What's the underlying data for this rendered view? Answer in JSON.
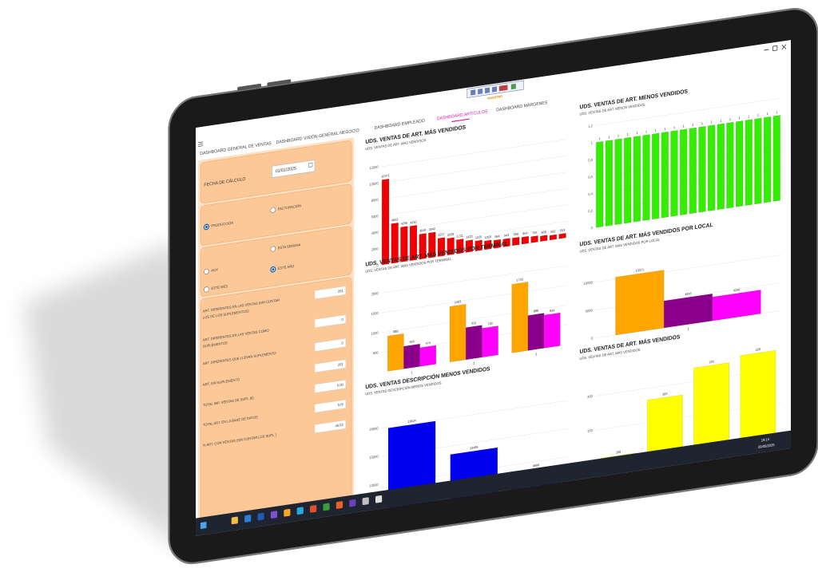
{
  "toolbar_label": "MAESTRO",
  "tabs": [
    "DASHBOARD GENERAL DE VENTAS",
    "DASHBOARD VISIÓN GENERAL NEGOCIO",
    "DASHBOARD EMPLEADO",
    "DASHBOARD ARTÍCULOS",
    "DASHBOARD MÁRGENES"
  ],
  "active_tab": 3,
  "filters": {
    "date_label": "FECHA DE CÁLCULO",
    "date_value": "01/01/2025",
    "mode": [
      "PRODUCCIÓN",
      "FACTURACIÓN"
    ],
    "mode_selected": 0,
    "period": [
      "HOY",
      "ESTA SEMANA",
      "ESTE AÑO",
      "ESTE MES"
    ],
    "period_selected": 2
  },
  "stats": [
    {
      "label": "ART. DIFERENTES EN LAS VENTAS (SIN CONTAR LOS DE LOS SUPLEMENTOS)",
      "value": "281"
    },
    {
      "label": "ART. DIFERENTES EN LAS VENTAS COMO SUPLEMENTOS",
      "value": "0"
    },
    {
      "label": "ART. DIFERENTES QUE LLEVAN SUPLEMENTO",
      "value": "0"
    },
    {
      "label": "ART. SIN SUPLEMENTO",
      "value": "281"
    },
    {
      "label": "TOTAL IMP. VENTAS DE SUPL.(€)",
      "value": "0,00"
    },
    {
      "label": "TOTAL ART. EN LA BASE DE DATOS",
      "value": "578"
    },
    {
      "label": "% ART. CON VENTAS (SIN CONTAR LOS SUPL.)",
      "value": "48,62"
    }
  ],
  "charts": [
    {
      "type": "bar",
      "title": "UDS. VENTAS DE ART. MÁS VENDIDOS",
      "subtitle": "UDS. VENTAS DE ART. MÁS VENDIDOS",
      "color": "#f00000",
      "values": [
        10371,
        4843,
        4256,
        4210,
        3049,
        3042,
        2217,
        2039,
        1711,
        1423,
        1220,
        1058,
        964,
        943,
        908,
        854,
        750,
        658,
        562,
        553
      ],
      "ylim": [
        0,
        12000
      ],
      "yticks": [
        0,
        2000,
        4000,
        6000,
        8000,
        10000,
        12000
      ]
    },
    {
      "type": "grouped_bar",
      "title": "UDS. VENTAS DE ART. MÁS VENDIDOS POR TERMINAL",
      "subtitle": "UDS. VENTAS DE ART. MÁS VENDIDOS POR TERMINAL",
      "categories": [
        "1",
        "2",
        "3"
      ],
      "series": [
        {
          "color": "#ffa500",
          "values": [
            888,
            1403,
            1733
          ]
        },
        {
          "color": "#8b008b",
          "values": [
            569,
            811,
            886
          ]
        },
        {
          "color": "#ff00ff",
          "values": [
            474,
            733,
            834
          ]
        }
      ],
      "ylim": [
        0,
        2000
      ],
      "yticks": [
        500,
        1000,
        1500,
        2000
      ]
    },
    {
      "type": "bar",
      "title": "UDS. VENTAS DESCRIPCIÓN MENOS VENDIDOS",
      "subtitle": "UDS. VENTAS DESCRIPCIÓN MENOS VENDIDOS",
      "color": "#0000ee",
      "values": [
        19824,
        13496,
        8698
      ],
      "ylim": [
        5000,
        22000
      ],
      "yticks": [
        10000,
        15000,
        20000
      ]
    },
    {
      "type": "bar",
      "title": "UDS. VENTAS DE ART. MENOS VENDIDOS",
      "subtitle": "UDS. VENTAS DE ART. MENOS VENDIDOS",
      "color": "#33ee00",
      "values": [
        1,
        1,
        1,
        1,
        1,
        1,
        1,
        1,
        1,
        1,
        1,
        1,
        1,
        1,
        1,
        1,
        1,
        1,
        1,
        1
      ],
      "ylim": [
        0,
        1.2
      ],
      "yticks": [
        0,
        {
          "value": 0.2,
          "label": "0,2"
        },
        {
          "value": 0.4,
          "label": "0,4"
        },
        {
          "value": 0.6,
          "label": "0,6"
        },
        {
          "value": 0.8,
          "label": "0,8"
        },
        1,
        {
          "value": 1.2,
          "label": "1,2"
        }
      ]
    },
    {
      "type": "grouped_bar",
      "title": "UDS. VENTAS DE ART. MÁS VENDIDOS POR LOCAL",
      "subtitle": "UDS. VENTAS DE ART. MÁS VENDIDOS POR LOCAL",
      "categories": [
        "1"
      ],
      "series": [
        {
          "color": "#ffa500",
          "values": [
            10371
          ]
        },
        {
          "color": "#8b008b",
          "values": [
            4843
          ]
        },
        {
          "color": "#ff00ff",
          "values": [
            4256
          ]
        }
      ],
      "ylim": [
        0,
        12000
      ],
      "yticks": [
        0,
        5000,
        10000
      ]
    },
    {
      "type": "bar",
      "title": "UDS. VENTAS DE ART. MÁS VENDIDOS",
      "subtitle": "UDS. VENTAS DE ART. MÁS VENDIDOS",
      "color": "#ffff00",
      "values": [
        108,
        183,
        220,
        228
      ],
      "ylim": [
        100,
        240
      ],
      "yticks": [
        150,
        200
      ]
    }
  ],
  "clock": {
    "time": "19:14",
    "date": "29/05/2025"
  }
}
